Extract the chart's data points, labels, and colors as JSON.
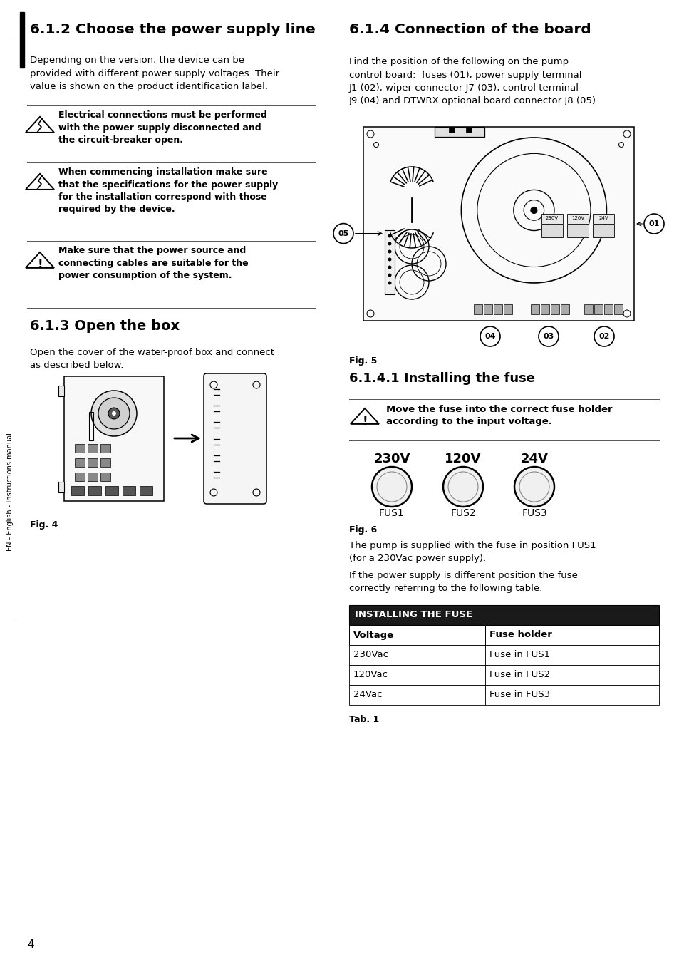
{
  "page_num": "4",
  "bg_color": "#ffffff",
  "left_col": {
    "section_title": "6.1.2 Choose the power supply line",
    "section_intro": "Depending on the version, the device can be\nprovided with different power supply voltages. Their\nvalue is shown on the product identification label.",
    "warn1": "Electrical connections must be performed\nwith the power supply disconnected and\nthe circuit-breaker open.",
    "warn2": "When commencing installation make sure\nthat the specifications for the power supply\nfor the installation correspond with those\nrequired by the device.",
    "warn3": "Make sure that the power source and\nconnecting cables are suitable for the\npower consumption of the system.",
    "section2_title": "6.1.3 Open the box",
    "section2_intro": "Open the cover of the water-proof box and connect\nas described below.",
    "fig4_label": "Fig. 4"
  },
  "right_col": {
    "section_title": "6.1.4 Connection of the board",
    "section_intro": "Find the position of the following on the pump\ncontrol board:  fuses (01), power supply terminal\nJ1 (02), wiper connector J7 (03), control terminal\nJ9 (04) and DTWRX optional board connector J8 (05).",
    "fig5_label": "Fig. 5",
    "subsection_title": "6.1.4.1 Installing the fuse",
    "fuse_warning": "Move the fuse into the correct fuse holder\naccording to the input voltage.",
    "fuse_labels": [
      "230V",
      "120V",
      "24V"
    ],
    "fuse_ids": [
      "FUS1",
      "FUS2",
      "FUS3"
    ],
    "fig6_label": "Fig. 6",
    "fuse_text1": "The pump is supplied with the fuse in position FUS1\n(for a 230Vac power supply).",
    "fuse_text2": "If the power supply is different position the fuse\ncorrectly referring to the following table.",
    "table_col1": "Voltage",
    "table_col2": "Fuse holder",
    "table_rows": [
      [
        "230Vac",
        "Fuse in FUS1"
      ],
      [
        "120Vac",
        "Fuse in FUS2"
      ],
      [
        "24Vac",
        "Fuse in FUS3"
      ]
    ],
    "tab_label": "Tab. 1"
  },
  "sidebar_text": "EN - English - Instructions manual",
  "table_header_bg": "#1a1a1a",
  "table_header_fg": "#ffffff"
}
